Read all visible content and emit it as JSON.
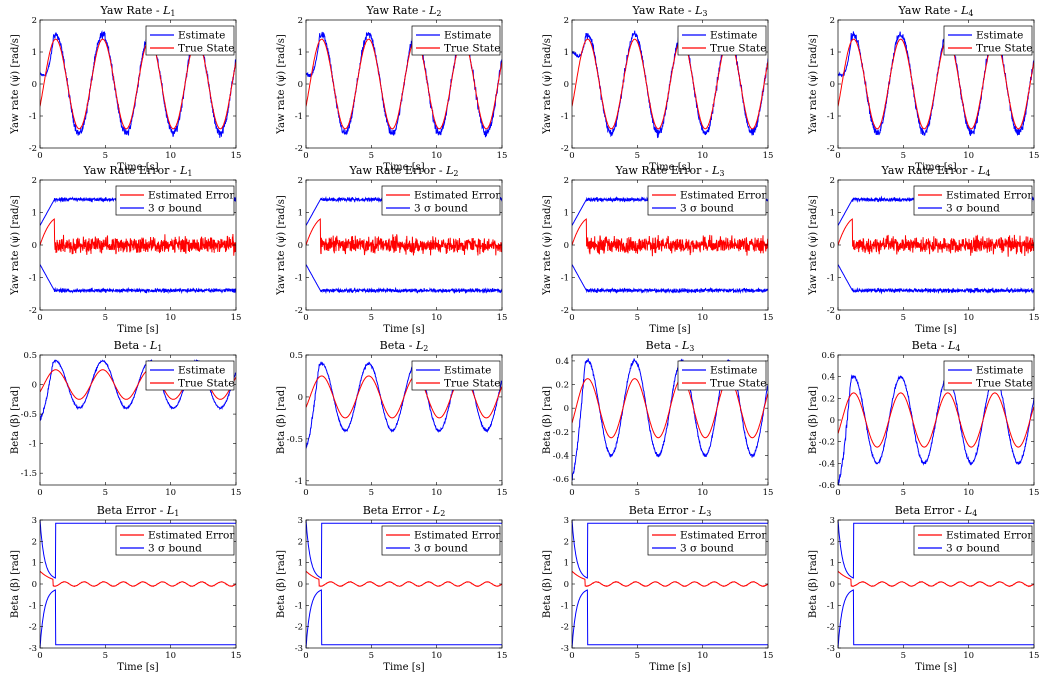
{
  "colors": {
    "estimate": "#0000ff",
    "true_state": "#ff0000",
    "error": "#ff0000",
    "bound": "#0000ff"
  },
  "chart_data": [
    {
      "row": 0,
      "col": 0,
      "type": "line",
      "title_prefix": "Yaw Rate - ",
      "title_sub": "1",
      "xlabel": "Time [s]",
      "ylabel": "Yaw rate (ψ̇) [rad/s]",
      "xlim": [
        0,
        15
      ],
      "ylim": [
        -2,
        2
      ],
      "xticks": [
        "0",
        "5",
        "10",
        "15"
      ],
      "yticks": [
        "-2",
        "-1",
        "0",
        "1",
        "2"
      ],
      "legend": [
        "Estimate",
        "True State"
      ],
      "legend_placement": "top-right",
      "kind": "yaw",
      "init": 0.3
    },
    {
      "row": 0,
      "col": 1,
      "type": "line",
      "title_prefix": "Yaw Rate - ",
      "title_sub": "2",
      "xlabel": "Time [s]",
      "ylabel": "Yaw rate (ψ̇) [rad/s]",
      "xlim": [
        0,
        15
      ],
      "ylim": [
        -2,
        2
      ],
      "xticks": [
        "0",
        "5",
        "10",
        "15"
      ],
      "yticks": [
        "-2",
        "-1",
        "0",
        "1",
        "2"
      ],
      "legend": [
        "Estimate",
        "True State"
      ],
      "legend_placement": "top-right",
      "kind": "yaw",
      "init": 0.3
    },
    {
      "row": 0,
      "col": 2,
      "type": "line",
      "title_prefix": "Yaw Rate - ",
      "title_sub": "3",
      "xlabel": "Time [s]",
      "ylabel": "Yaw rate (ψ̇) [rad/s]",
      "xlim": [
        0,
        15
      ],
      "ylim": [
        -2,
        2
      ],
      "xticks": [
        "0",
        "5",
        "10",
        "15"
      ],
      "yticks": [
        "-2",
        "-1",
        "0",
        "1",
        "2"
      ],
      "legend": [
        "Estimate",
        "True State"
      ],
      "legend_placement": "top-right",
      "kind": "yaw",
      "init": 1.0
    },
    {
      "row": 0,
      "col": 3,
      "type": "line",
      "title_prefix": "Yaw Rate - ",
      "title_sub": "4",
      "xlabel": "Time [s]",
      "ylabel": "Yaw rate (ψ̇) [rad/s]",
      "xlim": [
        0,
        15
      ],
      "ylim": [
        -2,
        2
      ],
      "xticks": [
        "0",
        "5",
        "10",
        "15"
      ],
      "yticks": [
        "-2",
        "-1",
        "0",
        "1",
        "2"
      ],
      "legend": [
        "Estimate",
        "True State"
      ],
      "legend_placement": "top-right",
      "kind": "yaw",
      "init": 0.3
    },
    {
      "row": 1,
      "col": 0,
      "type": "line",
      "title_prefix": "Yaw Rate Error - ",
      "title_sub": "1",
      "xlabel": "Time [s]",
      "ylabel": "Yaw rate (ψ̇) [rad/s]",
      "xlim": [
        0,
        15
      ],
      "ylim": [
        -2,
        2
      ],
      "xticks": [
        "0",
        "5",
        "10",
        "15"
      ],
      "yticks": [
        "-2",
        "-1",
        "0",
        "1",
        "2"
      ],
      "legend": [
        "Estimated Error",
        "3 σ bound"
      ],
      "legend_placement": "top-right",
      "kind": "yawerr",
      "bound": 1.4
    },
    {
      "row": 1,
      "col": 1,
      "type": "line",
      "title_prefix": "Yaw Rate Error - ",
      "title_sub": "2",
      "xlabel": "Time [s]",
      "ylabel": "Yaw rate (ψ̇) [rad/s]",
      "xlim": [
        0,
        15
      ],
      "ylim": [
        -2,
        2
      ],
      "xticks": [
        "0",
        "5",
        "10",
        "15"
      ],
      "yticks": [
        "-2",
        "-1",
        "0",
        "1",
        "2"
      ],
      "legend": [
        "Estimated Error",
        "3 σ bound"
      ],
      "legend_placement": "top-right",
      "kind": "yawerr",
      "bound": 1.4
    },
    {
      "row": 1,
      "col": 2,
      "type": "line",
      "title_prefix": "Yaw Rate Error - ",
      "title_sub": "3",
      "xlabel": "Time [s]",
      "ylabel": "Yaw rate (ψ̇) [rad/s]",
      "xlim": [
        0,
        15
      ],
      "ylim": [
        -2,
        2
      ],
      "xticks": [
        "0",
        "5",
        "10",
        "15"
      ],
      "yticks": [
        "-2",
        "-1",
        "0",
        "1",
        "2"
      ],
      "legend": [
        "Estimated Error",
        "3 σ bound"
      ],
      "legend_placement": "top-right",
      "kind": "yawerr",
      "bound": 1.4
    },
    {
      "row": 1,
      "col": 3,
      "type": "line",
      "title_prefix": "Yaw Rate Error - ",
      "title_sub": "4",
      "xlabel": "Time [s]",
      "ylabel": "Yaw rate (ψ̇) [rad/s]",
      "xlim": [
        0,
        15
      ],
      "ylim": [
        -2,
        2
      ],
      "xticks": [
        "0",
        "5",
        "10",
        "15"
      ],
      "yticks": [
        "-2",
        "-1",
        "0",
        "1",
        "2"
      ],
      "legend": [
        "Estimated Error",
        "3 σ bound"
      ],
      "legend_placement": "top-right",
      "kind": "yawerr",
      "bound": 1.4
    },
    {
      "row": 2,
      "col": 0,
      "type": "line",
      "title_prefix": "Beta - ",
      "title_sub": "1",
      "xlabel": "",
      "ylabel": "Beta (β) [rad]",
      "xlim": [
        0,
        15
      ],
      "ylim": [
        -1.7,
        0.5
      ],
      "xticks": [
        "0",
        "5",
        "10",
        "15"
      ],
      "yticks": [
        "-1.5",
        "-1",
        "-0.5",
        "0",
        "0.5"
      ],
      "ytick_values": [
        -1.5,
        -1,
        -0.5,
        0,
        0.5
      ],
      "legend": [
        "Estimate",
        "True State"
      ],
      "legend_placement": "top-right",
      "kind": "beta",
      "amp": 0.4,
      "true_amp": 0.25
    },
    {
      "row": 2,
      "col": 1,
      "type": "line",
      "title_prefix": "Beta - ",
      "title_sub": "2",
      "xlabel": "",
      "ylabel": "Beta (β) [rad]",
      "xlim": [
        0,
        15
      ],
      "ylim": [
        -1.05,
        0.5
      ],
      "xticks": [
        "0",
        "5",
        "10",
        "15"
      ],
      "yticks": [
        "-1",
        "-0.5",
        "0",
        "0.5"
      ],
      "ytick_values": [
        -1,
        -0.5,
        0,
        0.5
      ],
      "legend": [
        "Estimate",
        "True State"
      ],
      "legend_placement": "top-right",
      "kind": "beta",
      "amp": 0.4,
      "true_amp": 0.25
    },
    {
      "row": 2,
      "col": 2,
      "type": "line",
      "title_prefix": "Beta - ",
      "title_sub": "3",
      "xlabel": "",
      "ylabel": "Beta (β) [rad]",
      "xlim": [
        0,
        15
      ],
      "ylim": [
        -0.65,
        0.45
      ],
      "xticks": [
        "0",
        "5",
        "10",
        "15"
      ],
      "yticks": [
        "-0.6",
        "-0.4",
        "-0.2",
        "0",
        "0.2",
        "0.4"
      ],
      "ytick_values": [
        -0.6,
        -0.4,
        -0.2,
        0,
        0.2,
        0.4
      ],
      "legend": [
        "Estimate",
        "True State"
      ],
      "legend_placement": "top-right",
      "kind": "beta",
      "amp": 0.4,
      "true_amp": 0.25
    },
    {
      "row": 2,
      "col": 3,
      "type": "line",
      "title_prefix": "Beta - ",
      "title_sub": "4",
      "xlabel": "",
      "ylabel": "Beta (β) [rad]",
      "xlim": [
        0,
        15
      ],
      "ylim": [
        -0.6,
        0.6
      ],
      "xticks": [
        "0",
        "5",
        "10",
        "15"
      ],
      "yticks": [
        "-0.6",
        "-0.4",
        "-0.2",
        "0",
        "0.2",
        "0.4",
        "0.6"
      ],
      "ytick_values": [
        -0.6,
        -0.4,
        -0.2,
        0,
        0.2,
        0.4,
        0.6
      ],
      "legend": [
        "Estimate",
        "True State"
      ],
      "legend_placement": "top-right",
      "kind": "beta",
      "amp": 0.4,
      "true_amp": 0.25
    },
    {
      "row": 3,
      "col": 0,
      "type": "line",
      "title_prefix": "Beta Error - ",
      "title_sub": "1",
      "xlabel": "Time [s]",
      "ylabel": "Beta (β) [rad]",
      "xlim": [
        0,
        15
      ],
      "ylim": [
        -3,
        3
      ],
      "xticks": [
        "0",
        "5",
        "10",
        "15"
      ],
      "yticks": [
        "-3",
        "-2",
        "-1",
        "0",
        "1",
        "2",
        "3"
      ],
      "ytick_values": [
        -3,
        -2,
        -1,
        0,
        1,
        2,
        3
      ],
      "legend": [
        "Estimated Error",
        "3 σ bound"
      ],
      "legend_placement": "top-right",
      "kind": "betaerr",
      "bound": 2.85
    },
    {
      "row": 3,
      "col": 1,
      "type": "line",
      "title_prefix": "Beta Error - ",
      "title_sub": "2",
      "xlabel": "Time [s]",
      "ylabel": "Beta (β) [rad]",
      "xlim": [
        0,
        15
      ],
      "ylim": [
        -3,
        3
      ],
      "xticks": [
        "0",
        "5",
        "10",
        "15"
      ],
      "yticks": [
        "-3",
        "-2",
        "-1",
        "0",
        "1",
        "2",
        "3"
      ],
      "ytick_values": [
        -3,
        -2,
        -1,
        0,
        1,
        2,
        3
      ],
      "legend": [
        "Estimated Error",
        "3 σ bound"
      ],
      "legend_placement": "top-right",
      "kind": "betaerr",
      "bound": 2.85
    },
    {
      "row": 3,
      "col": 2,
      "type": "line",
      "title_prefix": "Beta Error - ",
      "title_sub": "3",
      "xlabel": "Time [s]",
      "ylabel": "Beta (β) [rad]",
      "xlim": [
        0,
        15
      ],
      "ylim": [
        -3,
        3
      ],
      "xticks": [
        "0",
        "5",
        "10",
        "15"
      ],
      "yticks": [
        "-3",
        "-2",
        "-1",
        "0",
        "1",
        "2",
        "3"
      ],
      "ytick_values": [
        -3,
        -2,
        -1,
        0,
        1,
        2,
        3
      ],
      "legend": [
        "Estimated Error",
        "3 σ bound"
      ],
      "legend_placement": "top-right",
      "kind": "betaerr",
      "bound": 2.85
    },
    {
      "row": 3,
      "col": 3,
      "type": "line",
      "title_prefix": "Beta Error - ",
      "title_sub": "4",
      "xlabel": "Time [s]",
      "ylabel": "Beta (β) [rad]",
      "xlim": [
        0,
        15
      ],
      "ylim": [
        -3,
        3
      ],
      "xticks": [
        "0",
        "5",
        "10",
        "15"
      ],
      "yticks": [
        "-3",
        "-2",
        "-1",
        "0",
        "1",
        "2",
        "3"
      ],
      "ytick_values": [
        -3,
        -2,
        -1,
        0,
        1,
        2,
        3
      ],
      "legend": [
        "Estimated Error",
        "3 σ bound"
      ],
      "legend_placement": "top-right",
      "kind": "betaerr",
      "bound": 2.85
    }
  ]
}
